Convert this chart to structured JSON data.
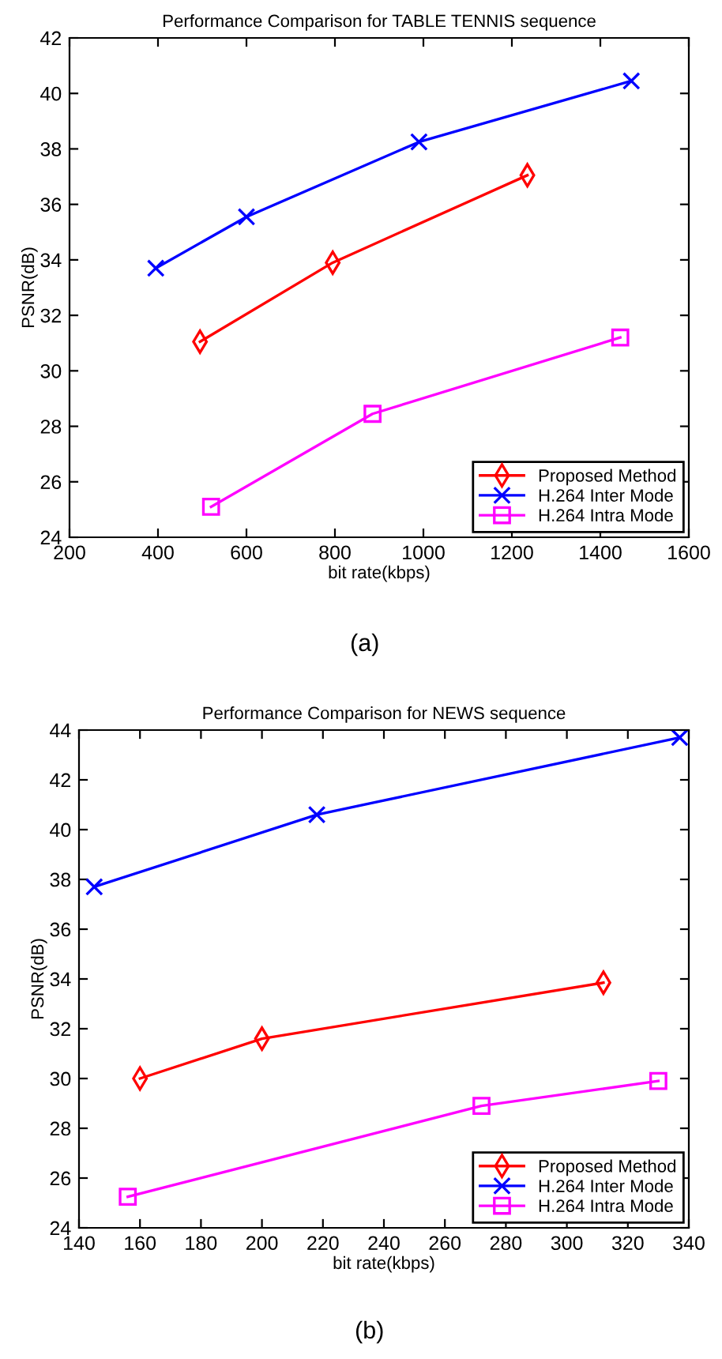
{
  "chart_data": [
    {
      "type": "line",
      "title": "Performance Comparison for TABLE TENNIS sequence",
      "xlabel": "bit rate(kbps)",
      "ylabel": "PSNR(dB)",
      "annotations": [
        "(a)"
      ],
      "xlim": [
        200,
        1600
      ],
      "xticks": [
        200,
        400,
        600,
        800,
        1000,
        1200,
        1400,
        1600
      ],
      "ylim": [
        24,
        42
      ],
      "yticks": [
        24,
        26,
        28,
        30,
        32,
        34,
        36,
        38,
        40,
        42
      ],
      "grid": false,
      "legend": "bottom right",
      "line_style": "solid",
      "series": [
        {
          "name": "Proposed Method",
          "color": "#ff0000",
          "marker": "diamond",
          "x": [
            495,
            795,
            1235
          ],
          "values": [
            31.05,
            33.9,
            37.05
          ]
        },
        {
          "name": "H.264 Inter Mode",
          "color": "#0000ff",
          "marker": "cross",
          "x": [
            395,
            600,
            990,
            1470
          ],
          "values": [
            33.7,
            35.55,
            38.25,
            40.45
          ]
        },
        {
          "name": "H.264 Intra Mode",
          "color": "#ff00ff",
          "marker": "square",
          "x": [
            520,
            885,
            1445
          ],
          "values": [
            25.1,
            28.45,
            31.2
          ]
        }
      ]
    },
    {
      "type": "line",
      "title": "Performance Comparison for NEWS sequence",
      "xlabel": "bit rate(kbps)",
      "ylabel": "PSNR(dB)",
      "annotations": [
        "(b)"
      ],
      "xlim": [
        140,
        340
      ],
      "xticks": [
        140,
        160,
        180,
        200,
        220,
        240,
        260,
        280,
        300,
        320,
        340
      ],
      "ylim": [
        24,
        44
      ],
      "yticks": [
        24,
        26,
        28,
        30,
        32,
        34,
        36,
        38,
        40,
        42,
        44
      ],
      "grid": false,
      "legend": "bottom right",
      "line_style": "solid",
      "series": [
        {
          "name": "Proposed Method",
          "color": "#ff0000",
          "marker": "diamond",
          "x": [
            160,
            200,
            312
          ],
          "values": [
            30.0,
            31.6,
            33.85
          ]
        },
        {
          "name": "H.264 Inter Mode",
          "color": "#0000ff",
          "marker": "cross",
          "x": [
            145,
            218,
            337
          ],
          "values": [
            37.7,
            40.6,
            43.7
          ]
        },
        {
          "name": "H.264 Intra Mode",
          "color": "#ff00ff",
          "marker": "square",
          "x": [
            156,
            272,
            330
          ],
          "values": [
            25.25,
            28.9,
            29.9
          ]
        }
      ]
    }
  ]
}
